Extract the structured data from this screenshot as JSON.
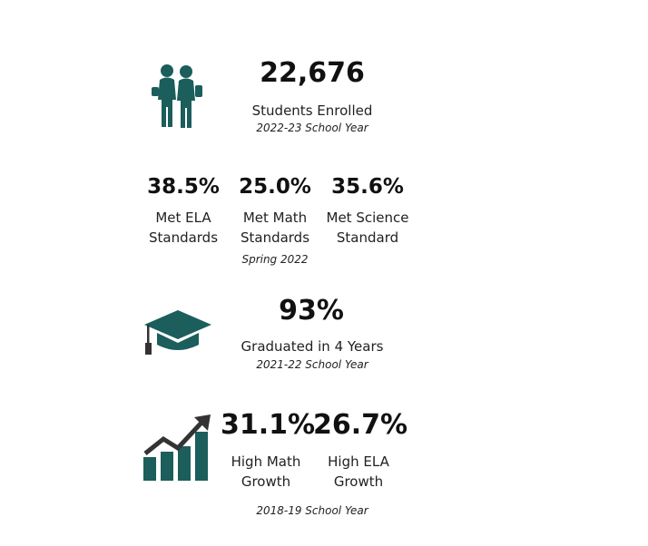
{
  "colors": {
    "icon_primary": "#1b5e5c",
    "icon_dark": "#333333",
    "text": "#111111"
  },
  "enrollment": {
    "icon": "students-icon",
    "value": "22,676",
    "label": "Students Enrolled",
    "period": "2022-23 School Year"
  },
  "standards": {
    "items": [
      {
        "value": "38.5%",
        "label_line1": "Met ELA",
        "label_line2": "Standards"
      },
      {
        "value": "25.0%",
        "label_line1": "Met Math",
        "label_line2": "Standards"
      },
      {
        "value": "35.6%",
        "label_line1": "Met Science",
        "label_line2": "Standard"
      }
    ],
    "period": "Spring 2022"
  },
  "graduation": {
    "icon": "graduation-cap-icon",
    "value": "93%",
    "label": "Graduated in 4 Years",
    "period": "2021-22 School Year"
  },
  "growth": {
    "icon": "growth-chart-icon",
    "items": [
      {
        "value": "31.1%",
        "label_line1": "High Math",
        "label_line2": "Growth"
      },
      {
        "value": "26.7%",
        "label_line1": "High ELA",
        "label_line2": "Growth"
      }
    ],
    "period": "2018-19 School Year"
  }
}
